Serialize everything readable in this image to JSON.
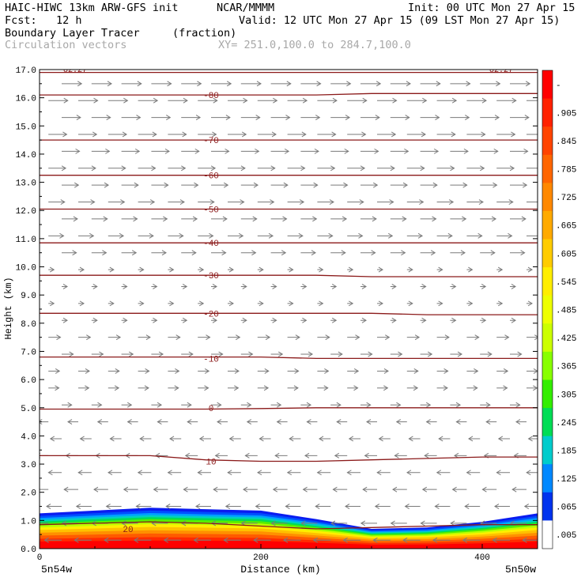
{
  "header": {
    "model": "HAIC-HIWC 13km ARW-GFS init",
    "org": "NCAR/MMMM",
    "init": "Init: 00 UTC Mon 27 Apr 15",
    "fcst": "Fcst:   12 h",
    "valid": "Valid: 12 UTC Mon 27 Apr 15 (09 LST Mon 27 Apr 15)",
    "field": "Boundary Layer Tracer",
    "units": "(fraction)",
    "vectors": "Circulation vectors",
    "xy": "XY= 251.0,100.0 to 284.7,100.0"
  },
  "chart_data": {
    "type": "heatmap",
    "xlabel": "Distance (km)",
    "ylabel": "Height (km)",
    "x_ticks": [
      "0",
      "200",
      "400"
    ],
    "x_tick_values": [
      0,
      200,
      400
    ],
    "xlim": [
      0,
      450
    ],
    "y_ticks": [
      "0.0",
      "1.0",
      "2.0",
      "3.0",
      "4.0",
      "5.0",
      "6.0",
      "7.0",
      "8.0",
      "9.0",
      "10.0",
      "11.0",
      "12.0",
      "13.0",
      "14.0",
      "15.0",
      "16.0",
      "17.0"
    ],
    "ylim": [
      0,
      17
    ],
    "left_end_label": "5n54w",
    "right_end_label": "5n50w",
    "colorbar": {
      "labels": [
        "-",
        ".905",
        ".845",
        ".785",
        ".725",
        ".665",
        ".605",
        ".545",
        ".485",
        ".425",
        ".365",
        ".305",
        ".245",
        ".185",
        ".125",
        ".065",
        ".005"
      ],
      "colors": [
        "#ff0000",
        "#ff2200",
        "#ff4400",
        "#ff6600",
        "#ff8800",
        "#ffaa00",
        "#ffcc00",
        "#ffee00",
        "#eeff00",
        "#ccff00",
        "#88ff00",
        "#33ee00",
        "#00dd55",
        "#00cccc",
        "#0088ff",
        "#0033ee",
        "#ffffff"
      ]
    },
    "temperature_contours": [
      {
        "label": "20",
        "y": [
          0.85,
          0.9,
          0.95,
          0.9,
          0.8,
          0.7,
          0.75,
          0.8,
          0.85,
          0.85
        ]
      },
      {
        "label": "10",
        "y": [
          3.3,
          3.3,
          3.3,
          3.15,
          3.1,
          3.1,
          3.15,
          3.2,
          3.25,
          3.25
        ]
      },
      {
        "label": "0",
        "y": [
          4.95,
          4.95,
          4.95,
          4.95,
          4.97,
          5.0,
          5.0,
          5.0,
          5.0,
          5.0
        ]
      },
      {
        "label": "-10",
        "y": [
          6.8,
          6.8,
          6.8,
          6.8,
          6.8,
          6.75,
          6.75,
          6.75,
          6.75,
          6.75
        ]
      },
      {
        "label": "-20",
        "y": [
          8.35,
          8.35,
          8.35,
          8.35,
          8.35,
          8.35,
          8.35,
          8.3,
          8.3,
          8.3
        ]
      },
      {
        "label": "-30",
        "y": [
          9.7,
          9.7,
          9.7,
          9.7,
          9.7,
          9.7,
          9.65,
          9.65,
          9.65,
          9.65
        ]
      },
      {
        "label": "-40",
        "y": [
          10.85,
          10.85,
          10.85,
          10.85,
          10.85,
          10.85,
          10.85,
          10.85,
          10.85,
          10.85
        ]
      },
      {
        "label": "-50",
        "y": [
          12.05,
          12.05,
          12.05,
          12.05,
          12.05,
          12.05,
          12.05,
          12.05,
          12.05,
          12.05
        ]
      },
      {
        "label": "-60",
        "y": [
          13.25,
          13.25,
          13.25,
          13.25,
          13.25,
          13.25,
          13.25,
          13.25,
          13.25,
          13.25
        ]
      },
      {
        "label": "-70",
        "y": [
          14.5,
          14.5,
          14.5,
          14.5,
          14.5,
          14.5,
          14.5,
          14.5,
          14.5,
          14.5
        ]
      },
      {
        "label": "-80",
        "y": [
          16.1,
          16.1,
          16.1,
          16.1,
          16.1,
          16.1,
          16.15,
          16.15,
          16.15,
          16.15
        ]
      },
      {
        "label": "",
        "y": [
          16.9,
          16.9,
          16.9,
          16.9,
          16.9,
          16.9,
          16.9,
          16.9,
          16.9,
          16.9
        ]
      }
    ],
    "boundary_layer_top_km": [
      1.25,
      1.35,
      1.45,
      1.4,
      1.35,
      1.05,
      0.7,
      0.75,
      0.95,
      1.25
    ],
    "top_labels": [
      "-82.27",
      "-82.27"
    ]
  }
}
